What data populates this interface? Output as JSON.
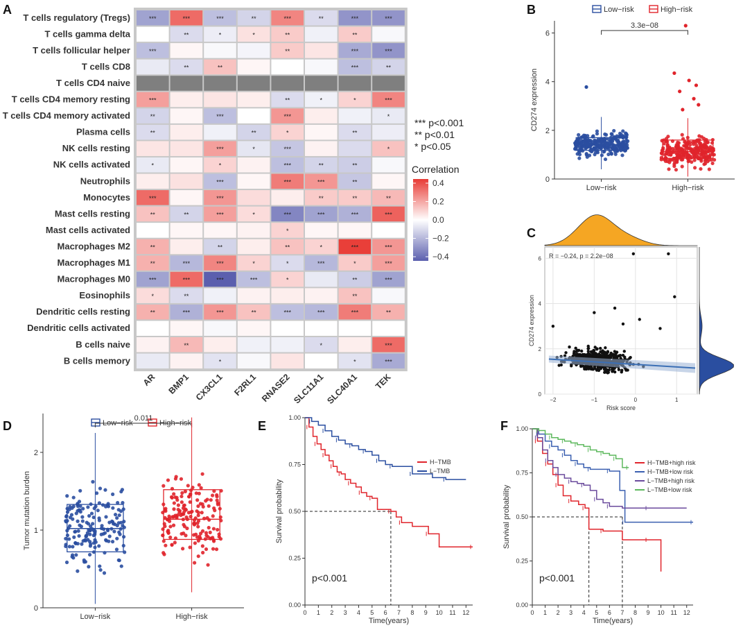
{
  "panels": {
    "A": "A",
    "B": "B",
    "C": "C",
    "D": "D",
    "E": "E",
    "F": "F"
  },
  "chart_data": [
    {
      "panel": "A",
      "type": "heatmap",
      "title": "",
      "rows": [
        "T cells regulatory (Tregs)",
        "T cells gamma delta",
        "T cells follicular helper",
        "T cells CD8",
        "T cells CD4 naive",
        "T cells CD4 memory resting",
        "T cells CD4 memory activated",
        "Plasma cells",
        "NK cells resting",
        "NK cells activated",
        "Neutrophils",
        "Monocytes",
        "Mast cells resting",
        "Mast cells activated",
        "Macrophages M2",
        "Macrophages M1",
        "Macrophages M0",
        "Eosinophils",
        "Dendritic cells resting",
        "Dendritic cells activated",
        "B cells naive",
        "B cells memory"
      ],
      "columns": [
        "AR",
        "BMP1",
        "CX3CL1",
        "F2RL1",
        "RNASE2",
        "SLC11A1",
        "SLC40A1",
        "TEK"
      ],
      "values": [
        [
          -0.26,
          0.34,
          -0.18,
          -0.12,
          0.28,
          -0.1,
          -0.3,
          -0.3
        ],
        [
          0.0,
          -0.1,
          -0.05,
          0.07,
          0.12,
          -0.04,
          0.12,
          -0.02
        ],
        [
          -0.18,
          0.02,
          -0.02,
          -0.03,
          0.12,
          0.06,
          -0.24,
          -0.3
        ],
        [
          -0.06,
          -0.1,
          0.14,
          0.02,
          0.0,
          -0.02,
          -0.18,
          -0.12
        ],
        [
          null,
          null,
          null,
          null,
          null,
          null,
          null,
          null
        ],
        [
          0.22,
          0.04,
          0.06,
          0.04,
          -0.1,
          -0.04,
          0.1,
          0.28
        ],
        [
          -0.12,
          0.02,
          -0.18,
          0.0,
          0.24,
          0.04,
          -0.04,
          -0.06
        ],
        [
          -0.1,
          0.04,
          -0.04,
          -0.12,
          0.1,
          0.02,
          -0.1,
          -0.05
        ],
        [
          0.06,
          0.06,
          0.22,
          -0.07,
          -0.16,
          0.03,
          -0.1,
          0.14
        ],
        [
          -0.06,
          0.02,
          0.1,
          0.03,
          -0.18,
          -0.12,
          -0.14,
          -0.02
        ],
        [
          0.04,
          0.07,
          -0.18,
          0.02,
          0.3,
          0.24,
          -0.16,
          0.02
        ],
        [
          0.34,
          0.02,
          0.24,
          0.08,
          0.04,
          0.12,
          0.12,
          0.16
        ],
        [
          0.14,
          -0.12,
          0.22,
          0.08,
          -0.34,
          -0.26,
          -0.22,
          0.36
        ],
        [
          0.0,
          0.02,
          0.02,
          0.03,
          0.1,
          0.02,
          0.02,
          0.0
        ],
        [
          0.18,
          0.04,
          -0.12,
          0.04,
          0.14,
          0.1,
          0.44,
          0.24
        ],
        [
          0.18,
          -0.2,
          0.28,
          0.1,
          -0.1,
          -0.2,
          0.12,
          0.22
        ],
        [
          -0.26,
          0.34,
          -0.46,
          -0.18,
          0.1,
          -0.06,
          -0.14,
          -0.26
        ],
        [
          0.08,
          -0.1,
          -0.04,
          0.03,
          0.04,
          0.03,
          0.14,
          -0.02
        ],
        [
          0.18,
          -0.22,
          0.24,
          0.14,
          -0.18,
          -0.2,
          0.3,
          0.18
        ],
        [
          0.0,
          0.02,
          -0.02,
          0.02,
          0.0,
          0.0,
          0.0,
          0.0
        ],
        [
          0.03,
          0.16,
          0.04,
          -0.04,
          -0.04,
          -0.1,
          0.04,
          0.34
        ],
        [
          -0.06,
          0.03,
          -0.08,
          -0.02,
          0.06,
          0.0,
          -0.08,
          -0.24
        ]
      ],
      "stars": [
        [
          "***",
          "***",
          "***",
          "**",
          "***",
          "**",
          "***",
          "***"
        ],
        [
          "",
          "**",
          "*",
          "*",
          "**",
          "",
          "**",
          ""
        ],
        [
          "***",
          "",
          "",
          "",
          "**",
          "",
          "***",
          "***"
        ],
        [
          "",
          "**",
          "**",
          "",
          "",
          "",
          "***",
          "**"
        ],
        [
          "",
          "",
          "",
          "",
          "",
          "",
          "",
          ""
        ],
        [
          "***",
          "",
          "",
          "",
          "**",
          "*",
          "*",
          "***"
        ],
        [
          "**",
          "",
          "***",
          "",
          "***",
          "",
          "",
          "*"
        ],
        [
          "**",
          "",
          "",
          "**",
          "*",
          "",
          "**",
          ""
        ],
        [
          "",
          "",
          "***",
          "*",
          "***",
          "",
          "",
          "*"
        ],
        [
          "*",
          "",
          "*",
          "",
          "***",
          "**",
          "**",
          ""
        ],
        [
          "",
          "",
          "***",
          "",
          "***",
          "***",
          "**",
          ""
        ],
        [
          "***",
          "",
          "***",
          "",
          "",
          "**",
          "**",
          "**"
        ],
        [
          "**",
          "**",
          "***",
          "*",
          "***",
          "***",
          "***",
          "***"
        ],
        [
          "",
          "",
          "",
          "",
          "*",
          "",
          "",
          ""
        ],
        [
          "**",
          "",
          "**",
          "",
          "**",
          "*",
          "***",
          "***"
        ],
        [
          "**",
          "***",
          "***",
          "*",
          "*",
          "***",
          "*",
          "***"
        ],
        [
          "***",
          "***",
          "***",
          "***",
          "*",
          "",
          "**",
          "***"
        ],
        [
          "*",
          "**",
          "",
          "",
          "",
          "",
          "**",
          ""
        ],
        [
          "**",
          "***",
          "***",
          "**",
          "***",
          "***",
          "***",
          "**"
        ],
        [
          "",
          "",
          "",
          "",
          "",
          "",
          "",
          ""
        ],
        [
          "",
          "**",
          "",
          "",
          "",
          "*",
          "",
          "***"
        ],
        [
          "",
          "",
          "*",
          "",
          "",
          "",
          "*",
          "***"
        ]
      ],
      "legend": {
        "title": "Correlation",
        "ticks": [
          "0.4",
          "0.2",
          "0.0",
          "−0.2",
          "−0.4"
        ],
        "range": [
          -0.4,
          0.4
        ]
      },
      "significance": [
        "***  p<0.001",
        "**  p<0.01",
        "*  p<0.05"
      ],
      "colors": {
        "high": "#e83b35",
        "mid": "#ffffff",
        "low": "#5b5fae",
        "na": "#7f7f7f"
      }
    },
    {
      "panel": "B",
      "type": "box",
      "legend": [
        "Low−risk",
        "High−risk"
      ],
      "categories": [
        "Low−risk",
        "High−risk"
      ],
      "ylabel": "CD274 expression",
      "ylim": [
        0,
        6.5
      ],
      "yticks": [
        "0",
        "2",
        "4",
        "6"
      ],
      "pvalue": "3.3e−08",
      "boxes": [
        {
          "q1": 1.18,
          "median": 1.42,
          "q3": 1.7,
          "wlow": 0.4,
          "whigh": 2.55
        },
        {
          "q1": 0.85,
          "median": 1.12,
          "q3": 1.6,
          "wlow": 0.1,
          "whigh": 2.5
        }
      ],
      "outliers": [
        [
          3.78
        ],
        [
          6.3,
          4.35,
          4.05,
          3.85,
          3.6,
          3.3,
          3.05,
          2.85
        ]
      ],
      "colors": [
        "#2a4ea0",
        "#e0242b"
      ]
    },
    {
      "panel": "C",
      "type": "scatter",
      "xlabel": "Risk score",
      "ylabel": "CD274 expression",
      "xticks": [
        "−2",
        "−1",
        "0",
        "1"
      ],
      "yticks": [
        "0",
        "2",
        "4",
        "6"
      ],
      "xlim": [
        -2.2,
        1.5
      ],
      "ylim": [
        0,
        6.5
      ],
      "annotation": "R = −0.24, p = 2.2e−08",
      "fit": {
        "x": [
          -2.1,
          1.45
        ],
        "y": [
          1.55,
          1.15
        ]
      },
      "colors": {
        "points": "#111111",
        "fit": "#3b6fb5",
        "xdens": "#f5a623",
        "ydens": "#2a4ea0"
      }
    },
    {
      "panel": "D",
      "type": "box",
      "legend": [
        "Low−risk",
        "High−risk"
      ],
      "categories": [
        "Low−risk",
        "High−risk"
      ],
      "ylabel": "Tumor mutation burden",
      "ylim": [
        0,
        2.5
      ],
      "yticks": [
        "0",
        "1",
        "2"
      ],
      "pvalue": "0.011",
      "boxes": [
        {
          "q1": 0.72,
          "median": 1.02,
          "q3": 1.33,
          "wlow": 0.05,
          "whigh": 2.25
        },
        {
          "q1": 0.88,
          "median": 1.14,
          "q3": 1.52,
          "wlow": 0.2,
          "whigh": 2.45
        }
      ],
      "colors": [
        "#2a4ea0",
        "#e0242b"
      ]
    },
    {
      "panel": "E",
      "type": "line",
      "xlabel": "Time(years)",
      "ylabel": "Survival probability",
      "xticks": [
        "0",
        "1",
        "2",
        "3",
        "4",
        "5",
        "6",
        "7",
        "8",
        "9",
        "10",
        "11",
        "12"
      ],
      "yticks": [
        "0.00",
        "0.25",
        "0.50",
        "0.75",
        "1.00"
      ],
      "pvalue": "p<0.001",
      "median_time": 6.4,
      "series": [
        {
          "name": "H−TMB",
          "color": "#e0242b",
          "x": [
            0,
            0.3,
            0.6,
            0.9,
            1.2,
            1.5,
            1.8,
            2.1,
            2.4,
            2.7,
            3.0,
            3.4,
            3.8,
            4.2,
            4.6,
            5.0,
            5.4,
            6.4,
            6.8,
            7.2,
            8.0,
            9.2,
            10.0,
            12.5
          ],
          "y": [
            1.0,
            0.95,
            0.9,
            0.86,
            0.83,
            0.8,
            0.77,
            0.74,
            0.71,
            0.7,
            0.67,
            0.65,
            0.63,
            0.6,
            0.58,
            0.57,
            0.51,
            0.5,
            0.47,
            0.44,
            0.42,
            0.38,
            0.31,
            0.31
          ]
        },
        {
          "name": "L−TMB",
          "color": "#2a4ea0",
          "x": [
            0,
            0.5,
            1.0,
            1.5,
            2.0,
            2.5,
            3.0,
            3.5,
            4.0,
            4.5,
            5.0,
            5.5,
            6.0,
            6.5,
            7.0,
            8.0,
            9.5,
            10.5,
            12.0
          ],
          "y": [
            1.0,
            0.98,
            0.96,
            0.93,
            0.9,
            0.88,
            0.86,
            0.85,
            0.83,
            0.82,
            0.8,
            0.77,
            0.75,
            0.74,
            0.74,
            0.7,
            0.68,
            0.67,
            0.67
          ]
        }
      ]
    },
    {
      "panel": "F",
      "type": "line",
      "xlabel": "Time(years)",
      "ylabel": "Survival probability",
      "xticks": [
        "0",
        "1",
        "2",
        "3",
        "4",
        "5",
        "6",
        "7",
        "8",
        "9",
        "10",
        "11",
        "12"
      ],
      "yticks": [
        "0.00",
        "0.25",
        "0.50",
        "0.75",
        "1.00"
      ],
      "pvalue": "p<0.001",
      "median_times": [
        4.4,
        7.0
      ],
      "series": [
        {
          "name": "H−TMB+high risk",
          "color": "#e0242b",
          "x": [
            0,
            0.4,
            0.8,
            1.2,
            1.6,
            2.0,
            2.4,
            3.0,
            3.6,
            4.1,
            4.4,
            5.5,
            7.0,
            9.0,
            10.0
          ],
          "y": [
            1.0,
            0.93,
            0.86,
            0.8,
            0.74,
            0.68,
            0.62,
            0.59,
            0.57,
            0.55,
            0.43,
            0.42,
            0.37,
            0.37,
            0.19
          ]
        },
        {
          "name": "H−TMB+low risk",
          "color": "#3a5fb0",
          "x": [
            0,
            0.5,
            1.0,
            1.5,
            2.0,
            2.5,
            3.0,
            3.5,
            4.0,
            4.5,
            5.0,
            6.0,
            6.8,
            7.2,
            8.0,
            12.5
          ],
          "y": [
            1.0,
            0.97,
            0.93,
            0.9,
            0.88,
            0.85,
            0.82,
            0.8,
            0.78,
            0.77,
            0.77,
            0.76,
            0.65,
            0.47,
            0.47,
            0.47
          ]
        },
        {
          "name": "L−TMB+high risk",
          "color": "#6a4a9c",
          "x": [
            0,
            0.4,
            0.8,
            1.2,
            1.6,
            2.0,
            2.5,
            3.0,
            3.5,
            4.0,
            4.5,
            5.0,
            5.5,
            6.0,
            7.0,
            9.0,
            12.0
          ],
          "y": [
            1.0,
            0.95,
            0.88,
            0.82,
            0.78,
            0.74,
            0.72,
            0.7,
            0.69,
            0.68,
            0.65,
            0.6,
            0.58,
            0.56,
            0.55,
            0.55,
            0.55
          ]
        },
        {
          "name": "L−TMB+low risk",
          "color": "#5cb85c",
          "x": [
            0,
            0.5,
            1.0,
            1.5,
            2.0,
            2.5,
            3.0,
            3.5,
            4.0,
            4.5,
            5.0,
            5.5,
            6.0,
            6.5,
            7.0,
            7.5
          ],
          "y": [
            1.0,
            0.99,
            0.97,
            0.95,
            0.94,
            0.93,
            0.92,
            0.91,
            0.9,
            0.88,
            0.87,
            0.86,
            0.85,
            0.83,
            0.78,
            0.78
          ]
        }
      ]
    }
  ]
}
